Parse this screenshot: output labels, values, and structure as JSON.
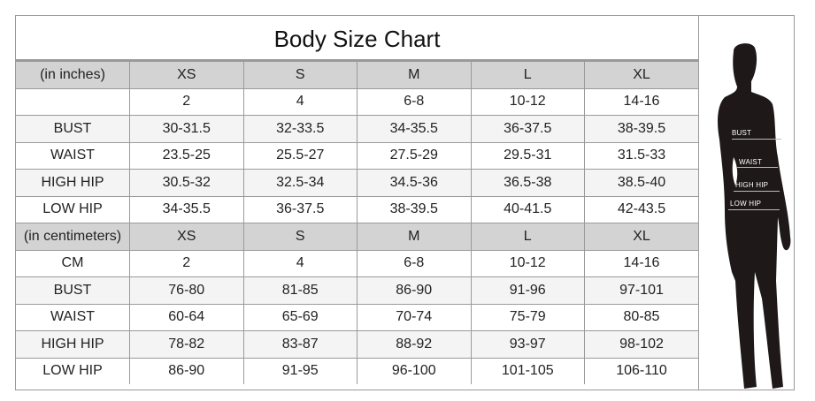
{
  "title": "Body Size Chart",
  "sections": [
    {
      "header": [
        "(in inches)",
        "XS",
        "S",
        "M",
        "L",
        "XL"
      ],
      "rows": [
        [
          "",
          "2",
          "4",
          "6-8",
          "10-12",
          "14-16"
        ],
        [
          "BUST",
          "30-31.5",
          "32-33.5",
          "34-35.5",
          "36-37.5",
          "38-39.5"
        ],
        [
          "WAIST",
          "23.5-25",
          "25.5-27",
          "27.5-29",
          "29.5-31",
          "31.5-33"
        ],
        [
          "HIGH HIP",
          "30.5-32",
          "32.5-34",
          "34.5-36",
          "36.5-38",
          "38.5-40"
        ],
        [
          "LOW HIP",
          "34-35.5",
          "36-37.5",
          "38-39.5",
          "40-41.5",
          "42-43.5"
        ]
      ]
    },
    {
      "header": [
        "(in centimeters)",
        "XS",
        "S",
        "M",
        "L",
        "XL"
      ],
      "rows": [
        [
          "CM",
          "2",
          "4",
          "6-8",
          "10-12",
          "14-16"
        ],
        [
          "BUST",
          "76-80",
          "81-85",
          "86-90",
          "91-96",
          "97-101"
        ],
        [
          "WAIST",
          "60-64",
          "65-69",
          "70-74",
          "75-79",
          "80-85"
        ],
        [
          "HIGH HIP",
          "78-82",
          "83-87",
          "88-92",
          "93-97",
          "98-102"
        ],
        [
          "LOW HIP",
          "86-90",
          "91-95",
          "96-100",
          "101-105",
          "106-110"
        ]
      ]
    }
  ],
  "figure": {
    "labels": [
      "BUST",
      "WAIST",
      "HIGH HIP",
      "LOW HIP"
    ],
    "silhouette_color": "#1e1819"
  },
  "colors": {
    "header_bg": "#d3d3d3",
    "grid": "#9a9a9a",
    "alt_row": "#f4f4f4"
  }
}
